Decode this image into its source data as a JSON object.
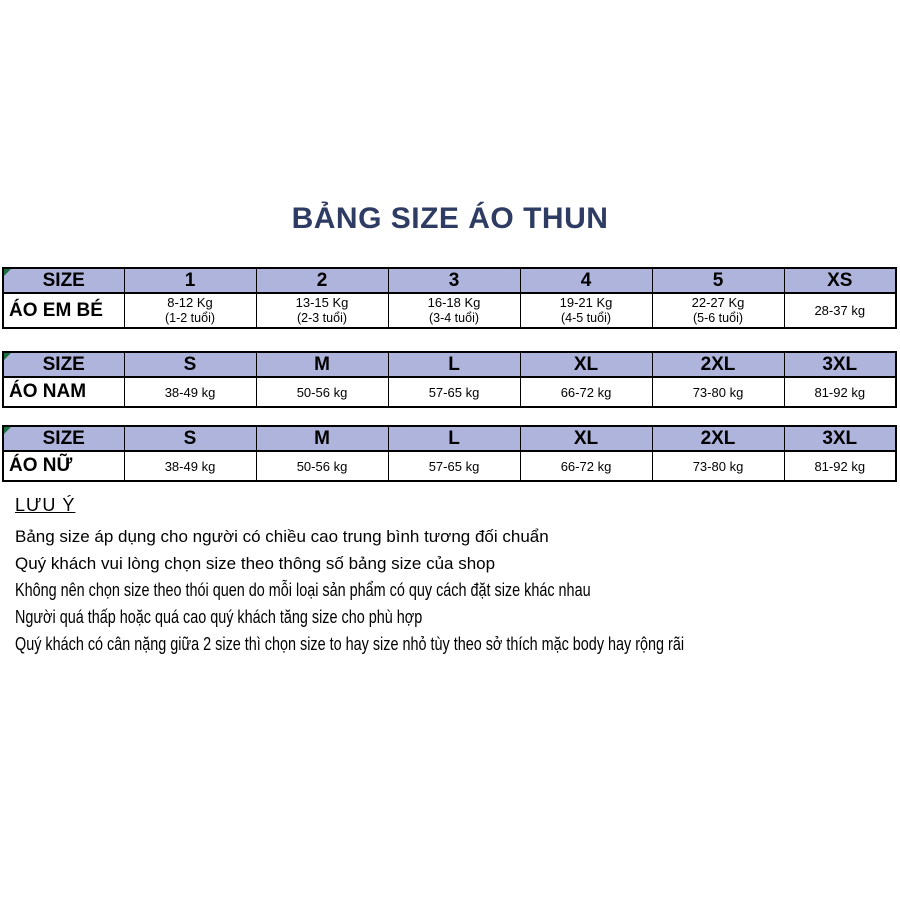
{
  "page": {
    "title": "BẢNG SIZE ÁO THUN"
  },
  "colors": {
    "title_text": "#2e3b62",
    "table_header_bg": "#afb4dc",
    "table_border": "#000000",
    "corner_marker_green": "#1d7044",
    "background": "#ffffff"
  },
  "icons": {
    "corner_marker": "green-triangle-excel-marker"
  },
  "tables": [
    {
      "name": "ao-em-be",
      "headers": [
        "SIZE",
        "1",
        "2",
        "3",
        "4",
        "5",
        "XS"
      ],
      "row_label": "ÁO EM BÉ",
      "cells": [
        {
          "weight": "8-12 Kg",
          "age": "(1-2 tuổi)"
        },
        {
          "weight": "13-15 Kg",
          "age": "(2-3 tuổi)"
        },
        {
          "weight": "16-18 Kg",
          "age": "(3-4 tuổi)"
        },
        {
          "weight": "19-21 Kg",
          "age": "(4-5 tuổi)"
        },
        {
          "weight": "22-27 Kg",
          "age": "(5-6 tuổi)"
        },
        {
          "weight": "28-37 kg",
          "age": ""
        }
      ]
    },
    {
      "name": "ao-nam",
      "headers": [
        "SIZE",
        "S",
        "M",
        "L",
        "XL",
        "2XL",
        "3XL"
      ],
      "row_label": "ÁO NAM",
      "cells": [
        {
          "weight": "38-49 kg"
        },
        {
          "weight": "50-56 kg"
        },
        {
          "weight": "57-65 kg"
        },
        {
          "weight": "66-72 kg"
        },
        {
          "weight": "73-80 kg"
        },
        {
          "weight": "81-92 kg"
        }
      ]
    },
    {
      "name": "ao-nu",
      "headers": [
        "SIZE",
        "S",
        "M",
        "L",
        "XL",
        "2XL",
        "3XL"
      ],
      "row_label": "ÁO NỮ",
      "cells": [
        {
          "weight": "38-49 kg"
        },
        {
          "weight": "50-56 kg"
        },
        {
          "weight": "57-65 kg"
        },
        {
          "weight": "66-72 kg"
        },
        {
          "weight": "73-80 kg"
        },
        {
          "weight": "81-92 kg"
        }
      ]
    }
  ],
  "notes": {
    "heading": "LƯU Ý",
    "items": [
      "Bảng size áp dụng cho người có chiều cao trung bình tương đối chuẩn",
      "Quý khách vui lòng chọn size theo thông số bảng size của shop",
      "Không nên chọn size theo thói quen do mỗi loại sản phẩm có quy cách đặt size khác nhau",
      "Người quá thấp hoặc quá cao quý khách tăng size cho phù hợp",
      "Quý khách có cân nặng giữa 2 size thì chọn size to hay size nhỏ tùy theo sở thích mặc body hay rộng rãi"
    ]
  }
}
